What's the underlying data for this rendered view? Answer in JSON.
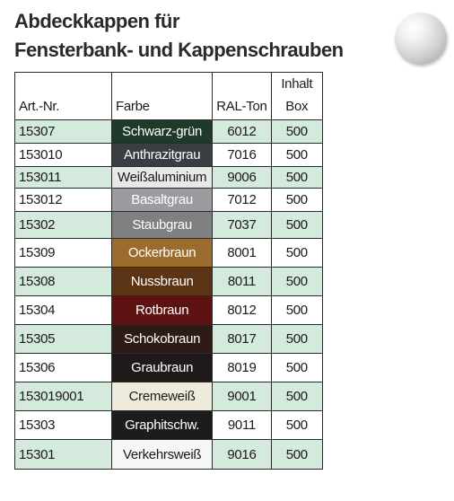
{
  "title": {
    "line1": "Abdeckkappen für",
    "line2": "Fensterbank- und Kappenschrauben"
  },
  "table": {
    "headers": {
      "art": "Art.-Nr.",
      "farbe": "Farbe",
      "ral": "RAL-Ton",
      "box_line1": "Inhalt",
      "box_line2": "Box"
    },
    "rows": [
      {
        "art": "15307",
        "farbe": "Schwarz-grün",
        "ral": "6012",
        "box": "500",
        "swatch": "#1f3a2b",
        "text": "#ffffff"
      },
      {
        "art": "153010",
        "farbe": "Anthrazitgrau",
        "ral": "7016",
        "box": "500",
        "swatch": "#383e42",
        "text": "#ffffff"
      },
      {
        "art": "153011",
        "farbe": "Weißaluminium",
        "ral": "9006",
        "box": "500",
        "swatch": "#e8e8e6",
        "text": "#1a1a1a"
      },
      {
        "art": "153012",
        "farbe": "Basaltgrau",
        "ral": "7012",
        "box": "500",
        "swatch": "#9a9ca0",
        "text": "#ffffff"
      },
      {
        "art": "15302",
        "farbe": "Staubgrau",
        "ral": "7037",
        "box": "500",
        "swatch": "#7f8082",
        "text": "#ffffff"
      },
      {
        "art": "15309",
        "farbe": "Ockerbraun",
        "ral": "8001",
        "box": "500",
        "swatch": "#9c6b30",
        "text": "#ffffff"
      },
      {
        "art": "15308",
        "farbe": "Nussbraun",
        "ral": "8011",
        "box": "500",
        "swatch": "#5a3414",
        "text": "#ffffff"
      },
      {
        "art": "15304",
        "farbe": "Rotbraun",
        "ral": "8012",
        "box": "500",
        "swatch": "#5e1313",
        "text": "#ffffff"
      },
      {
        "art": "15305",
        "farbe": "Schokobraun",
        "ral": "8017",
        "box": "500",
        "swatch": "#2e1a17",
        "text": "#ffffff"
      },
      {
        "art": "15306",
        "farbe": "Graubraun",
        "ral": "8019",
        "box": "500",
        "swatch": "#1e1a1a",
        "text": "#ffffff"
      },
      {
        "art": "153019001",
        "farbe": "Cremeweiß",
        "ral": "9001",
        "box": "500",
        "swatch": "#efebdc",
        "text": "#1a1a1a"
      },
      {
        "art": "15303",
        "farbe": "Graphitschw.",
        "ral": "9011",
        "box": "500",
        "swatch": "#1c1c1e",
        "text": "#ffffff"
      },
      {
        "art": "15301",
        "farbe": "Verkehrsweiß",
        "ral": "9016",
        "box": "500",
        "swatch": "#f4f6f7",
        "text": "#1a1a1a"
      }
    ]
  }
}
